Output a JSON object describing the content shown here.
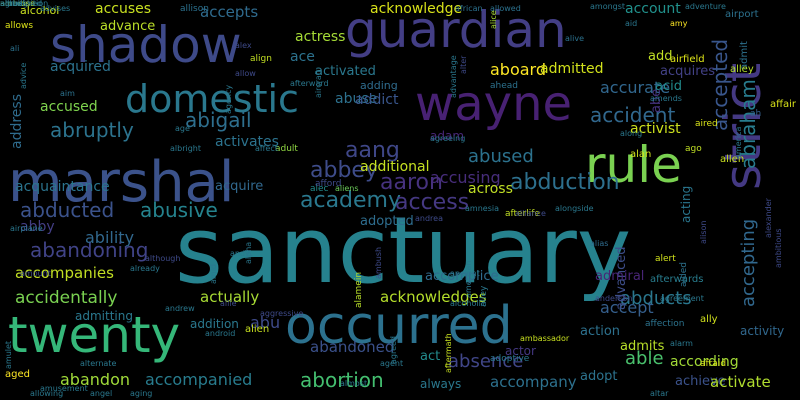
{
  "words": [
    {
      "text": "sanctuary",
      "color": "#26828e",
      "weight": 1.0
    },
    {
      "text": "occurred",
      "color": "#2c718e",
      "weight": 0.55
    },
    {
      "text": "marshal",
      "color": "#3b528b",
      "weight": 0.55
    },
    {
      "text": "guardian",
      "color": "#433e85",
      "weight": 0.55
    },
    {
      "text": "shadow",
      "color": "#3e4a89",
      "weight": 0.5
    },
    {
      "text": "wayne",
      "color": "#482173",
      "weight": 0.5
    },
    {
      "text": "twenty",
      "color": "#35b779",
      "weight": 0.5
    },
    {
      "text": "rule",
      "color": "#7ad151",
      "weight": 0.5
    },
    {
      "text": "strict",
      "color": "#443983",
      "weight": 0.5
    },
    {
      "text": "domestic",
      "color": "#2a788e",
      "weight": 0.35
    },
    {
      "text": "abraham",
      "color": "#287c8e",
      "weight": 0.25
    },
    {
      "text": "accepted",
      "color": "#39568c",
      "weight": 0.25
    },
    {
      "text": "abduction",
      "color": "#2d708e",
      "weight": 0.22
    },
    {
      "text": "accident",
      "color": "#31688e",
      "weight": 0.22
    },
    {
      "text": "academy",
      "color": "#2a788e",
      "weight": 0.22
    },
    {
      "text": "abbey",
      "color": "#3e4c8a",
      "weight": 0.2
    },
    {
      "text": "aang",
      "color": "#3f4788",
      "weight": 0.2
    },
    {
      "text": "aaron",
      "color": "#46327e",
      "weight": 0.2
    },
    {
      "text": "access",
      "color": "#453882",
      "weight": 0.2
    },
    {
      "text": "abusive",
      "color": "#25838e",
      "weight": 0.2
    },
    {
      "text": "abducted",
      "color": "#3b528b",
      "weight": 0.2
    },
    {
      "text": "abandoning",
      "color": "#404387",
      "weight": 0.2
    },
    {
      "text": "abortion",
      "color": "#44bf70",
      "weight": 0.2
    },
    {
      "text": "abigail",
      "color": "#2e6f8e",
      "weight": 0.2
    },
    {
      "text": "abruptly",
      "color": "#2c738e",
      "weight": 0.18
    },
    {
      "text": "abused",
      "color": "#2c728e",
      "weight": 0.18
    },
    {
      "text": "absence",
      "color": "#404688",
      "weight": 0.18
    },
    {
      "text": "accepting",
      "color": "#31688e",
      "weight": 0.18
    },
    {
      "text": "abducts",
      "color": "#2a778e",
      "weight": 0.18
    },
    {
      "text": "able",
      "color": "#4ac16d",
      "weight": 0.18
    },
    {
      "text": "accurate",
      "color": "#31678e",
      "weight": 0.16
    },
    {
      "text": "abandon",
      "color": "#a0da39",
      "weight": 0.16
    },
    {
      "text": "accidentally",
      "color": "#7ad151",
      "weight": 0.16
    },
    {
      "text": "accusing",
      "color": "#472d7b",
      "weight": 0.16
    },
    {
      "text": "accept",
      "color": "#355f8d",
      "weight": 0.16
    },
    {
      "text": "accompanied",
      "color": "#287c8e",
      "weight": 0.16
    },
    {
      "text": "acknowledges",
      "color": "#b5de2b",
      "weight": 0.14
    },
    {
      "text": "accuses",
      "color": "#c8e020",
      "weight": 0.14
    },
    {
      "text": "accepts",
      "color": "#2f6b8e",
      "weight": 0.14
    },
    {
      "text": "actress",
      "color": "#a5db36",
      "weight": 0.14
    },
    {
      "text": "aboard",
      "color": "#fde725",
      "weight": 0.14
    },
    {
      "text": "ability",
      "color": "#31688e",
      "weight": 0.14
    },
    {
      "text": "accompanies",
      "color": "#c2df23",
      "weight": 0.14
    },
    {
      "text": "acquaintance",
      "color": "#2b748e",
      "weight": 0.14
    },
    {
      "text": "abu",
      "color": "#3e4a89",
      "weight": 0.14
    },
    {
      "text": "actually",
      "color": "#a8db34",
      "weight": 0.14
    },
    {
      "text": "abandoned",
      "color": "#3b518b",
      "weight": 0.14
    },
    {
      "text": "accompany",
      "color": "#2d718e",
      "weight": 0.14
    },
    {
      "text": "according",
      "color": "#a2da37",
      "weight": 0.14
    },
    {
      "text": "achieve",
      "color": "#3b528b",
      "weight": 0.14
    },
    {
      "text": "activate",
      "color": "#b0dd2f",
      "weight": 0.12
    },
    {
      "text": "acknowledge",
      "color": "#d8e219",
      "weight": 0.12
    },
    {
      "text": "account",
      "color": "#21918c",
      "weight": 0.12
    },
    {
      "text": "abuse",
      "color": "#2d718e",
      "weight": 0.13
    },
    {
      "text": "across",
      "color": "#c0df25",
      "weight": 0.13
    },
    {
      "text": "acquires",
      "color": "#424186",
      "weight": 0.12
    },
    {
      "text": "accused",
      "color": "#7fd34e",
      "weight": 0.12
    },
    {
      "text": "acquired",
      "color": "#2c728e",
      "weight": 0.12
    },
    {
      "text": "addict",
      "color": "#39568c",
      "weight": 0.12
    },
    {
      "text": "additional",
      "color": "#c5e021",
      "weight": 0.12
    },
    {
      "text": "advance",
      "color": "#bade28",
      "weight": 0.1
    },
    {
      "text": "ace",
      "color": "#2c728e",
      "weight": 0.12
    },
    {
      "text": "admitted",
      "color": "#d2e21b",
      "weight": 0.12
    },
    {
      "text": "activist",
      "color": "#cde11d",
      "weight": 0.12
    },
    {
      "text": "activates",
      "color": "#2c738e",
      "weight": 0.12
    },
    {
      "text": "address",
      "color": "#2f6c8e",
      "weight": 0.1
    },
    {
      "text": "abby",
      "color": "#433e85",
      "weight": 0.12
    },
    {
      "text": "acquire",
      "color": "#31688e",
      "weight": 0.12
    },
    {
      "text": "activated",
      "color": "#2a788e",
      "weight": 0.1
    },
    {
      "text": "accomplice",
      "color": "#2f6b8e",
      "weight": 0.1
    },
    {
      "text": "adopted",
      "color": "#2e6d8e",
      "weight": 0.1
    },
    {
      "text": "advanced",
      "color": "#3d4e8a",
      "weight": 0.1
    },
    {
      "text": "admiral",
      "color": "#482576",
      "weight": 0.1
    },
    {
      "text": "adopt",
      "color": "#2c738e",
      "weight": 0.1
    },
    {
      "text": "action",
      "color": "#2d718e",
      "weight": 0.1
    },
    {
      "text": "admits",
      "color": "#b8de29",
      "weight": 0.1
    },
    {
      "text": "act",
      "color": "#228b8d",
      "weight": 0.1
    },
    {
      "text": "add",
      "color": "#c0df25",
      "weight": 0.1
    },
    {
      "text": "acid",
      "color": "#228c8d",
      "weight": 0.1
    },
    {
      "text": "abe",
      "color": "#46337f",
      "weight": 0.1
    },
    {
      "text": "acting",
      "color": "#2a768e",
      "weight": 0.1
    },
    {
      "text": "activity",
      "color": "#31688e",
      "weight": 0.09
    },
    {
      "text": "actor",
      "color": "#453882",
      "weight": 0.09
    },
    {
      "text": "admitting",
      "color": "#2a788e",
      "weight": 0.09
    },
    {
      "text": "addition",
      "color": "#2a788e",
      "weight": 0.09
    },
    {
      "text": "adam",
      "color": "#482677",
      "weight": 0.09
    },
    {
      "text": "adding",
      "color": "#2f6c8e",
      "weight": 0.09
    },
    {
      "text": "alcohol",
      "color": "#c8e020",
      "weight": 0.08
    },
    {
      "text": "admit",
      "color": "#2d718e",
      "weight": 0.08
    },
    {
      "text": "airport",
      "color": "#2c718e",
      "weight": 0.07
    },
    {
      "text": "alley",
      "color": "#b5de2b",
      "weight": 0.07
    },
    {
      "text": "allen",
      "color": "#c8e020",
      "weight": 0.07
    },
    {
      "text": "airfield",
      "color": "#dde318",
      "weight": 0.07
    },
    {
      "text": "alan",
      "color": "#d0e11c",
      "weight": 0.07
    },
    {
      "text": "ah",
      "color": "#355f8d",
      "weight": 0.07
    },
    {
      "text": "align",
      "color": "#c2df23",
      "weight": 0.06
    },
    {
      "text": "afterwards",
      "color": "#287d8e",
      "weight": 0.06
    },
    {
      "text": "alert",
      "color": "#d0e11c",
      "weight": 0.06
    },
    {
      "text": "affair",
      "color": "#d8e219",
      "weight": 0.06
    },
    {
      "text": "ago",
      "color": "#c0df25",
      "weight": 0.06
    },
    {
      "text": "alec",
      "color": "#228c8d",
      "weight": 0.06
    },
    {
      "text": "alien",
      "color": "#c8e020",
      "weight": 0.06
    },
    {
      "text": "allows",
      "color": "#dde318",
      "weight": 0.06
    },
    {
      "text": "ally",
      "color": "#d0e11c",
      "weight": 0.06
    },
    {
      "text": "aged",
      "color": "#fde725",
      "weight": 0.06
    },
    {
      "text": "adult",
      "color": "#90d743",
      "weight": 0.06
    },
    {
      "text": "adoptive",
      "color": "#2a788e",
      "weight": 0.06
    },
    {
      "text": "afterlife",
      "color": "#c2df23",
      "weight": 0.06
    },
    {
      "text": "afraid",
      "color": "#d8e219",
      "weight": 0.05
    },
    {
      "text": "agent",
      "color": "#2a788e",
      "weight": 0.05
    },
    {
      "text": "alley",
      "color": "#2a788e",
      "weight": 0.05
    },
    {
      "text": "afford",
      "color": "#3e4a89",
      "weight": 0.05
    },
    {
      "text": "aliens",
      "color": "#6ccd5a",
      "weight": 0.05
    },
    {
      "text": "ahead",
      "color": "#2c728e",
      "weight": 0.05
    },
    {
      "text": "alex",
      "color": "#3e4a89",
      "weight": 0.05
    },
    {
      "text": "aired",
      "color": "#d8e219",
      "weight": 0.05
    },
    {
      "text": "alamein",
      "color": "#b8de29",
      "weight": 0.05
    },
    {
      "text": "aided",
      "color": "#2c728e",
      "weight": 0.05
    },
    {
      "text": "allowed",
      "color": "#2c728e",
      "weight": 0.05
    },
    {
      "text": "allison",
      "color": "#2c718e",
      "weight": 0.05
    },
    {
      "text": "affection",
      "color": "#2c738e",
      "weight": 0.05
    },
    {
      "text": "alice",
      "color": "#a8db34",
      "weight": 0.05
    },
    {
      "text": "alias",
      "color": "#2f6c8e",
      "weight": 0.05
    },
    {
      "text": "aggressive",
      "color": "#3e4a89",
      "weight": 0.05
    },
    {
      "text": "amy",
      "color": "#fde725",
      "weight": 0.05
    },
    {
      "text": "alarm",
      "color": "#2a788e",
      "weight": 0.05
    },
    {
      "text": "allie",
      "color": "#3e4a89",
      "weight": 0.05
    },
    {
      "text": "alive",
      "color": "#2c728e",
      "weight": 0.05
    },
    {
      "text": "aid",
      "color": "#2a778e",
      "weight": 0.05
    },
    {
      "text": "agreeing",
      "color": "#2a788e",
      "weight": 0.05
    },
    {
      "text": "agreed",
      "color": "#2a788e",
      "weight": 0.05
    },
    {
      "text": "african",
      "color": "#2c718e",
      "weight": 0.05
    },
    {
      "text": "advises",
      "color": "#2a788e",
      "weight": 0.05
    },
    {
      "text": "ali",
      "color": "#2c728e",
      "weight": 0.04
    },
    {
      "text": "advice",
      "color": "#2a788e",
      "weight": 0.04
    },
    {
      "text": "aim",
      "color": "#2c728e",
      "weight": 0.04
    },
    {
      "text": "allow",
      "color": "#3e4a89",
      "weight": 0.04
    },
    {
      "text": "agency",
      "color": "#2a788e",
      "weight": 0.04
    },
    {
      "text": "age",
      "color": "#2a788e",
      "weight": 0.04
    },
    {
      "text": "albright",
      "color": "#2a788e",
      "weight": 0.04
    },
    {
      "text": "affect",
      "color": "#2a788e",
      "weight": 0.04
    },
    {
      "text": "aircraft",
      "color": "#2a788e",
      "weight": 0.04
    },
    {
      "text": "alter",
      "color": "#3e4a89",
      "weight": 0.04
    },
    {
      "text": "afterward",
      "color": "#2a788e",
      "weight": 0.04
    },
    {
      "text": "almost",
      "color": "#2a788e",
      "weight": 0.04
    },
    {
      "text": "advantage",
      "color": "#2a788e",
      "weight": 0.04
    },
    {
      "text": "amongst",
      "color": "#2a788e",
      "weight": 0.04
    },
    {
      "text": "adventure",
      "color": "#2a788e",
      "weight": 0.04
    },
    {
      "text": "along",
      "color": "#2a788e",
      "weight": 0.04
    },
    {
      "text": "america",
      "color": "#2a788e",
      "weight": 0.04
    },
    {
      "text": "amends",
      "color": "#2a788e",
      "weight": 0.04
    },
    {
      "text": "ambush",
      "color": "#3e4a89",
      "weight": 0.04
    },
    {
      "text": "andrea",
      "color": "#3e4a89",
      "weight": 0.04
    },
    {
      "text": "ancient",
      "color": "#2a788e",
      "weight": 0.04
    },
    {
      "text": "american",
      "color": "#2a788e",
      "weight": 0.04
    },
    {
      "text": "alpha",
      "color": "#2a788e",
      "weight": 0.04
    },
    {
      "text": "amnesia",
      "color": "#2a788e",
      "weight": 0.04
    },
    {
      "text": "alongside",
      "color": "#2a788e",
      "weight": 0.04
    },
    {
      "text": "alliance",
      "color": "#3e4a89",
      "weight": 0.04
    },
    {
      "text": "alison",
      "color": "#3e4a89",
      "weight": 0.04
    },
    {
      "text": "alexander",
      "color": "#3e4a89",
      "weight": 0.04
    },
    {
      "text": "ambitious",
      "color": "#3e4a89",
      "weight": 0.04
    },
    {
      "text": "airplane",
      "color": "#2a788e",
      "weight": 0.04
    },
    {
      "text": "amid",
      "color": "#2a788e",
      "weight": 0.04
    },
    {
      "text": "andy",
      "color": "#2a788e",
      "weight": 0.04
    },
    {
      "text": "although",
      "color": "#3e4a89",
      "weight": 0.04
    },
    {
      "text": "amount",
      "color": "#3e4a89",
      "weight": 0.04
    },
    {
      "text": "already",
      "color": "#2a788e",
      "weight": 0.04
    },
    {
      "text": "alcoholic",
      "color": "#2a788e",
      "weight": 0.04
    },
    {
      "text": "anderson",
      "color": "#3e4a89",
      "weight": 0.04
    },
    {
      "text": "agreement",
      "color": "#2a788e",
      "weight": 0.04
    },
    {
      "text": "amulet",
      "color": "#2a788e",
      "weight": 0.04
    },
    {
      "text": "andrew",
      "color": "#2a788e",
      "weight": 0.04
    },
    {
      "text": "android",
      "color": "#2a788e",
      "weight": 0.04
    },
    {
      "text": "aftermath",
      "color": "#c8e020",
      "weight": 0.04
    },
    {
      "text": "ambassador",
      "color": "#c8e020",
      "weight": 0.04
    },
    {
      "text": "alternate",
      "color": "#2a788e",
      "weight": 0.04
    },
    {
      "text": "amusement",
      "color": "#2a788e",
      "weight": 0.04
    },
    {
      "text": "allowing",
      "color": "#2a788e",
      "weight": 0.04
    },
    {
      "text": "angel",
      "color": "#2a788e",
      "weight": 0.04
    },
    {
      "text": "aging",
      "color": "#2a788e",
      "weight": 0.04
    },
    {
      "text": "always",
      "color": "#2a788e",
      "weight": 0.04
    },
    {
      "text": "altar",
      "color": "#2a788e",
      "weight": 0.04
    },
    {
      "text": "among",
      "color": "#2a788e",
      "weight": 0.04
    },
    {
      "text": "albert",
      "color": "#2a788e",
      "weight": 0.04
    },
    {
      "text": "alone",
      "color": "#2a788e",
      "weight": 0.04
    },
    {
      "text": "agrees",
      "color": "#2a788e",
      "weight": 0.04
    },
    {
      "text": "ammunition",
      "color": "#2a788e",
      "weight": 0.04
    },
    {
      "text": "ambition",
      "color": "#2a788e",
      "weight": 0.04
    },
    {
      "text": "ambrose",
      "color": "#c8e020",
      "weight": 0.04
    },
    {
      "text": "actual",
      "color": "#2a788e",
      "weight": 0.09
    },
    {
      "text": "ambushed",
      "color": "#2a788e",
      "weight": 0.04
    }
  ]
}
